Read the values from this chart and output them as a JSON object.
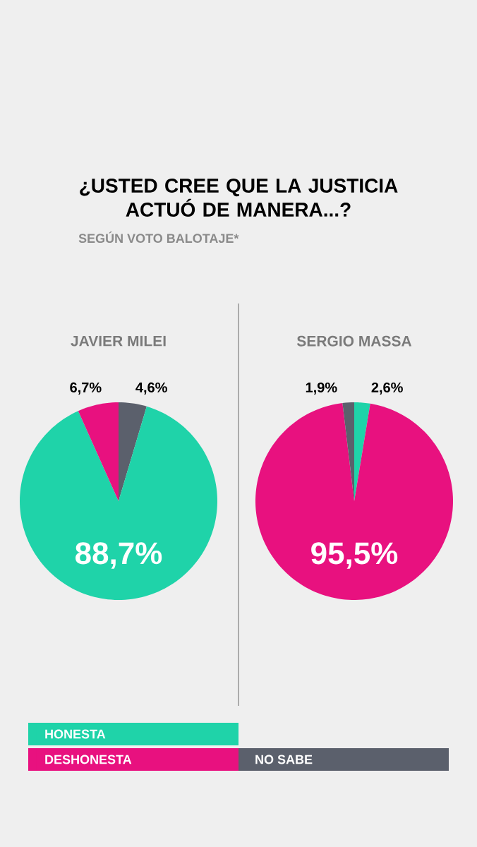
{
  "chart_data": [
    {
      "type": "other",
      "title": "¿USTED CREE QUE LA JUSTICIA ACTUÓ DE MANERA...?",
      "subtitle": "SEGÚN VOTO BALOTAJE*"
    },
    {
      "type": "pie",
      "title": "JAVIER MILEI",
      "categories": [
        null,
        null,
        null
      ],
      "values": [
        4.6,
        88.7,
        6.7
      ],
      "colors": [
        "#5b606c",
        "#1fd3a9",
        "#e8117f"
      ],
      "value_labels": [
        "4,6%",
        "88,7%",
        "6,7%"
      ]
    },
    {
      "type": "pie",
      "title": "SERGIO MASSA",
      "categories": [
        "HONESTA",
        "DESHONESTA",
        "NO SABE"
      ],
      "values": [
        2.6,
        95.5,
        1.9
      ],
      "colors": [
        "#1fd3a9",
        "#e8117f",
        "#5b606c"
      ],
      "value_labels": [
        "2,6%",
        "95,5%",
        "1,9%"
      ],
      "legend": "bottom"
    }
  ]
}
